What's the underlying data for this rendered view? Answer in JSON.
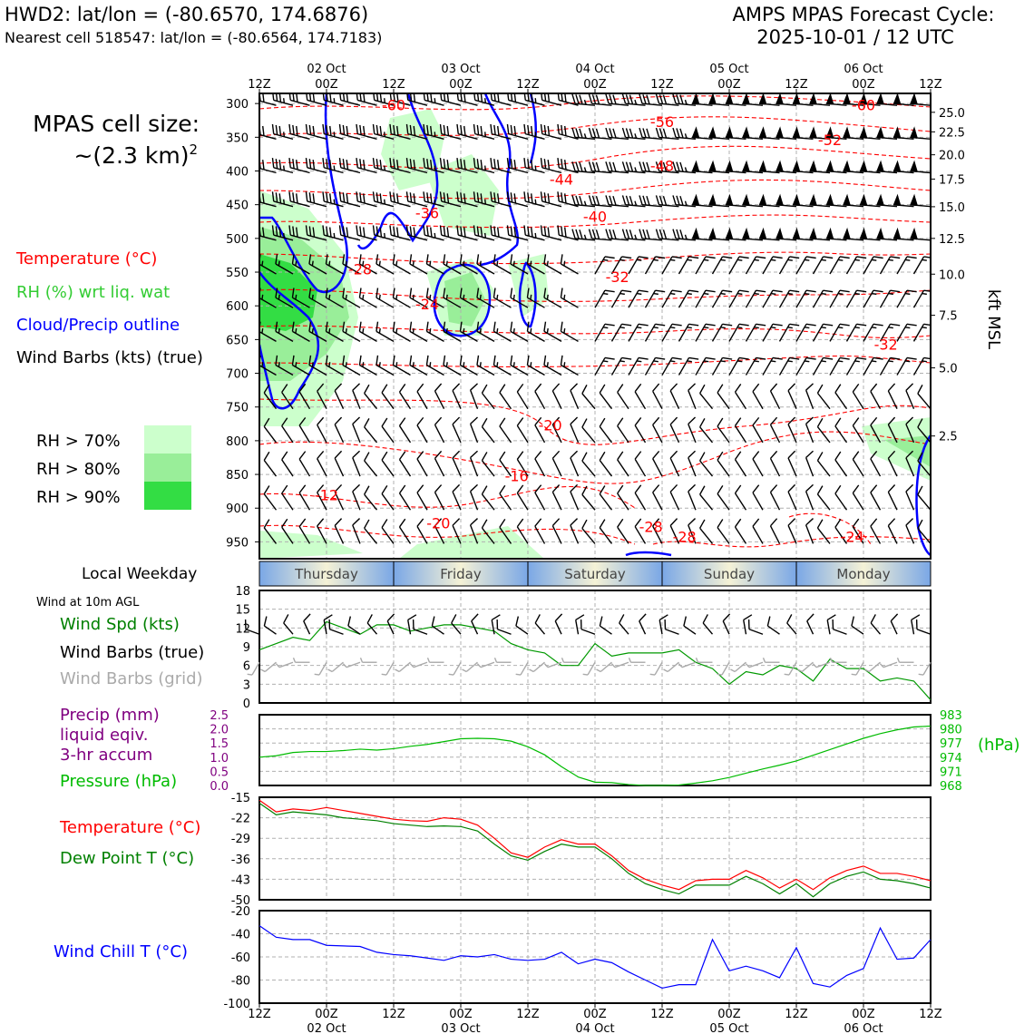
{
  "header": {
    "station": "HWD2: lat/lon = (-80.6570, 174.6876)",
    "nearest": "Nearest cell 518547: lat/lon = (-80.6564, 174.7183)",
    "model_line1": "AMPS MPAS Forecast Cycle:",
    "model_line2": "2025-10-01 / 12 UTC"
  },
  "cell": {
    "line1": "MPAS cell size:",
    "line2": "~(2.3 km)",
    "sup": "2"
  },
  "legend": {
    "temperature": "Temperature (°C)",
    "rh": "RH (%) wrt liq. wat",
    "cloud": "Cloud/Precip outline",
    "barbs": "Wind Barbs (kts) (true)",
    "rh70": "RH > 70%",
    "rh80": "RH > 80%",
    "rh90": "RH > 90%"
  },
  "weekday_label": "Local Weekday",
  "wind10_label": "Wind at 10m AGL",
  "panel_labels": {
    "wind_spd": "Wind Spd (kts)",
    "barbs_true": "Wind Barbs (true)",
    "barbs_grid": "Wind Barbs (grid)",
    "precip1": "Precip (mm)",
    "precip2": "liquid eqiv.",
    "precip3": "3-hr accum",
    "pressure": "Pressure (hPa)",
    "hpa_unit": "(hPa)",
    "temp": "Temperature (°C)",
    "dew": "Dew Point T (°C)",
    "chill": "Wind Chill T (°C)",
    "kft": "kft MSL"
  },
  "colors": {
    "temp": "#ff0000",
    "dew": "#008000",
    "wind": "#009900",
    "pressure": "#00bb00",
    "precip": "#800080",
    "cloud": "#0000ff",
    "chill": "#0000ff",
    "rh70": "#ccffcc",
    "rh80": "#99ee99",
    "rh90": "#33dd44",
    "weekday_gradient_edge": "#7aa7e6",
    "weekday_gradient_mid": "#f5f2d6"
  },
  "chart_data": [
    {
      "type": "heatmap",
      "name": "cross-section",
      "time_hours": [
        0,
        120
      ],
      "top_ticks": [
        "12Z",
        "00Z",
        "12Z",
        "00Z",
        "12Z",
        "00Z",
        "12Z",
        "00Z",
        "12Z",
        "00Z",
        "12Z"
      ],
      "top_dates": [
        "02 Oct",
        "03 Oct",
        "04 Oct",
        "05 Oct",
        "06 Oct"
      ],
      "pressure_ticks": [
        300,
        350,
        400,
        450,
        500,
        550,
        600,
        650,
        700,
        750,
        800,
        850,
        900,
        950
      ],
      "kft_ticks": [
        "25.0",
        "22.5",
        "20.0",
        "17.5",
        "15.0",
        "12.5",
        "10.0",
        "7.5",
        "5.0",
        "2.5"
      ],
      "kft_pressure": [
        313,
        342,
        376,
        412,
        453,
        500,
        553,
        614,
        692,
        793
      ],
      "temperature_labels": [
        {
          "t": 24,
          "p": 310,
          "text": "-60"
        },
        {
          "t": 72,
          "p": 335,
          "text": "-56"
        },
        {
          "t": 108,
          "p": 310,
          "text": "-60"
        },
        {
          "t": 102,
          "p": 362,
          "text": "-52"
        },
        {
          "t": 72,
          "p": 400,
          "text": "-48"
        },
        {
          "t": 54,
          "p": 420,
          "text": "-44"
        },
        {
          "t": 60,
          "p": 475,
          "text": "-40"
        },
        {
          "t": 30,
          "p": 470,
          "text": "-36"
        },
        {
          "t": 64,
          "p": 565,
          "text": "-32"
        },
        {
          "t": 112,
          "p": 665,
          "text": "-32"
        },
        {
          "t": 18,
          "p": 553,
          "text": "-28"
        },
        {
          "t": 30,
          "p": 605,
          "text": "-24"
        },
        {
          "t": 52,
          "p": 785,
          "text": "-20"
        },
        {
          "t": 32,
          "p": 930,
          "text": "-20"
        },
        {
          "t": 46,
          "p": 860,
          "text": "-16"
        },
        {
          "t": 12,
          "p": 888,
          "text": "-12"
        },
        {
          "t": 70,
          "p": 935,
          "text": "-28"
        },
        {
          "t": 76,
          "p": 950,
          "text": "-28"
        },
        {
          "t": 106,
          "p": 950,
          "text": "-24"
        }
      ]
    },
    {
      "type": "line",
      "name": "wind-speed",
      "xlabel": "",
      "ylabel": "Wind Spd (kts)",
      "ylim": [
        0,
        18
      ],
      "yticks": [
        0,
        3,
        6,
        9,
        12,
        15,
        18
      ],
      "x": [
        0,
        3,
        6,
        9,
        12,
        15,
        18,
        21,
        24,
        27,
        30,
        33,
        36,
        39,
        42,
        45,
        48,
        51,
        54,
        57,
        60,
        63,
        66,
        69,
        72,
        75,
        78,
        81,
        84,
        87,
        90,
        93,
        96,
        99,
        102,
        105,
        108,
        111,
        114,
        117,
        120
      ],
      "series": [
        {
          "values": [
            8.5,
            9.5,
            10.5,
            10.0,
            13.0,
            12.0,
            11.0,
            12.5,
            12.5,
            11.5,
            12.0,
            12.5,
            12.5,
            12.0,
            11.5,
            9.5,
            8.5,
            8.0,
            6.0,
            6.0,
            9.5,
            7.5,
            8.0,
            8.0,
            8.0,
            8.5,
            6.5,
            5.5,
            3.0,
            5.0,
            4.5,
            6.0,
            5.5,
            3.5,
            7.0,
            5.5,
            5.5,
            3.5,
            4.0,
            3.5,
            0.5
          ]
        }
      ]
    },
    {
      "type": "line",
      "name": "pressure",
      "ylabel": "Pressure (hPa)",
      "ylim": [
        968,
        983
      ],
      "yticks_right": [
        968,
        971,
        974,
        977,
        980,
        983
      ],
      "precip_ylim": [
        0,
        2.5
      ],
      "precip_yticks": [
        0,
        0.5,
        1.0,
        1.5,
        2.0,
        2.5
      ],
      "x": [
        0,
        3,
        6,
        9,
        12,
        15,
        18,
        21,
        24,
        27,
        30,
        33,
        36,
        39,
        42,
        45,
        48,
        51,
        54,
        57,
        60,
        63,
        66,
        69,
        72,
        75,
        78,
        81,
        84,
        87,
        90,
        93,
        96,
        99,
        102,
        105,
        108,
        111,
        114,
        117,
        120
      ],
      "series": [
        {
          "name": "Pressure (hPa)",
          "values": [
            974.0,
            974.3,
            975.0,
            975.2,
            975.2,
            975.4,
            975.7,
            975.5,
            975.8,
            976.3,
            976.7,
            977.3,
            977.9,
            978.0,
            977.9,
            977.4,
            976.2,
            974.5,
            972.0,
            969.8,
            968.7,
            968.6,
            968.2,
            968.0,
            968.0,
            968.1,
            968.5,
            969.0,
            969.7,
            970.6,
            971.5,
            972.3,
            973.2,
            974.4,
            975.6,
            976.8,
            978.0,
            979.0,
            979.8,
            980.4,
            980.6
          ]
        }
      ]
    },
    {
      "type": "line",
      "name": "temperature-dewpoint",
      "ylim": [
        -50,
        -15
      ],
      "yticks": [
        -15,
        -22,
        -29,
        -36,
        -43,
        -50
      ],
      "x": [
        0,
        3,
        6,
        9,
        12,
        15,
        18,
        21,
        24,
        27,
        30,
        33,
        36,
        39,
        42,
        45,
        48,
        51,
        54,
        57,
        60,
        63,
        66,
        69,
        72,
        75,
        78,
        81,
        84,
        87,
        90,
        93,
        96,
        99,
        102,
        105,
        108,
        111,
        114,
        117,
        120
      ],
      "series": [
        {
          "name": "Temperature (°C)",
          "values": [
            -16.0,
            -20.0,
            -19.0,
            -19.5,
            -18.5,
            -19.5,
            -20.5,
            -21.5,
            -22.5,
            -23.0,
            -23.2,
            -22.0,
            -22.5,
            -24.5,
            -29.0,
            -34.0,
            -35.5,
            -32.0,
            -29.5,
            -31.0,
            -31.0,
            -35.0,
            -40.0,
            -43.0,
            -45.0,
            -46.5,
            -43.5,
            -43.0,
            -43.0,
            -40.0,
            -42.5,
            -46.0,
            -43.0,
            -46.5,
            -42.5,
            -40.0,
            -38.5,
            -41.0,
            -41.0,
            -42.0,
            -43.5
          ]
        },
        {
          "name": "Dew Point T (°C)",
          "values": [
            -17.0,
            -21.0,
            -20.0,
            -20.5,
            -21.0,
            -22.0,
            -22.5,
            -23.0,
            -24.0,
            -24.5,
            -25.0,
            -24.8,
            -25.0,
            -26.5,
            -31.0,
            -35.0,
            -36.5,
            -33.5,
            -31.0,
            -32.0,
            -32.0,
            -36.0,
            -41.0,
            -44.5,
            -46.5,
            -48.0,
            -45.0,
            -45.0,
            -45.0,
            -42.0,
            -44.5,
            -48.0,
            -44.5,
            -49.0,
            -44.5,
            -42.0,
            -40.5,
            -43.0,
            -43.5,
            -44.5,
            -46.0
          ]
        }
      ]
    },
    {
      "type": "line",
      "name": "wind-chill",
      "ylim": [
        -100,
        -20
      ],
      "yticks": [
        -20,
        -40,
        -60,
        -80,
        -100
      ],
      "bottom_ticks": [
        "12Z",
        "00Z",
        "12Z",
        "00Z",
        "12Z",
        "00Z",
        "12Z",
        "00Z",
        "12Z",
        "00Z",
        "12Z"
      ],
      "bottom_dates": [
        "02 Oct",
        "03 Oct",
        "04 Oct",
        "05 Oct",
        "06 Oct"
      ],
      "x": [
        0,
        3,
        6,
        9,
        12,
        15,
        18,
        21,
        24,
        27,
        30,
        33,
        36,
        39,
        42,
        45,
        48,
        51,
        54,
        57,
        60,
        63,
        66,
        69,
        72,
        75,
        78,
        81,
        84,
        87,
        90,
        93,
        96,
        99,
        102,
        105,
        108,
        111,
        114,
        117,
        120
      ],
      "series": [
        {
          "name": "Wind Chill T (°C)",
          "values": [
            -33,
            -43,
            -45,
            -45,
            -50,
            -50.5,
            -51,
            -56,
            -58,
            -59,
            -61,
            -63,
            -59,
            -60,
            -58,
            -62,
            -63,
            -62,
            -56,
            -66,
            -62,
            -65,
            -73,
            -80,
            -87,
            -84,
            -84,
            -45,
            -72,
            -68,
            -72,
            -78,
            -52,
            -83,
            -86,
            -76,
            -70,
            -35,
            -62,
            -61,
            -45
          ]
        }
      ]
    }
  ],
  "weekdays": [
    "Thursday",
    "Friday",
    "Saturday",
    "Sunday",
    "Monday"
  ]
}
